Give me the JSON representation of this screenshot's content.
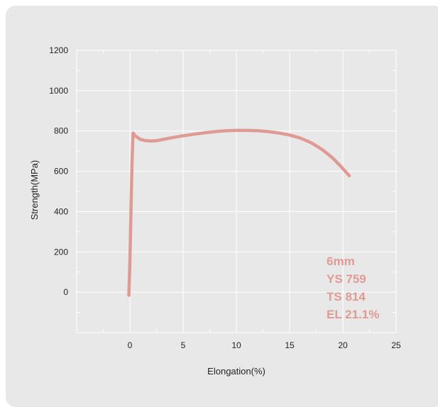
{
  "chart_data": {
    "type": "line",
    "xlabel": "Elongation(%)",
    "ylabel": "Strength(MPa)",
    "xlim": [
      -5,
      25
    ],
    "ylim": [
      -200,
      1200
    ],
    "xticks": [
      0,
      5,
      10,
      15,
      20,
      25
    ],
    "yticks": [
      0,
      200,
      400,
      600,
      800,
      1000,
      1200
    ],
    "grid": true,
    "line_color": "#e09a94",
    "background": "#e8e8e8",
    "series": [
      {
        "x": [
          -0.1,
          0.0,
          0.1,
          0.2,
          0.3,
          0.5,
          1.0,
          1.5,
          2.0,
          2.5,
          3.0,
          4.0,
          5.0,
          6.0,
          7.0,
          8.0,
          9.0,
          10.0,
          11.0,
          12.0,
          13.0,
          14.0,
          15.0,
          16.0,
          17.0,
          18.0,
          19.0,
          19.8,
          20.6
        ],
        "y": [
          -15,
          150,
          400,
          650,
          790,
          775,
          758,
          752,
          750,
          752,
          757,
          767,
          776,
          784,
          791,
          797,
          801,
          803,
          803,
          801,
          797,
          790,
          780,
          765,
          742,
          710,
          668,
          625,
          578
        ]
      }
    ],
    "annotations": [
      "6mm",
      "YS 759",
      "TS 814",
      "EL 21.1%"
    ],
    "annotation_color": "#e09a94"
  }
}
